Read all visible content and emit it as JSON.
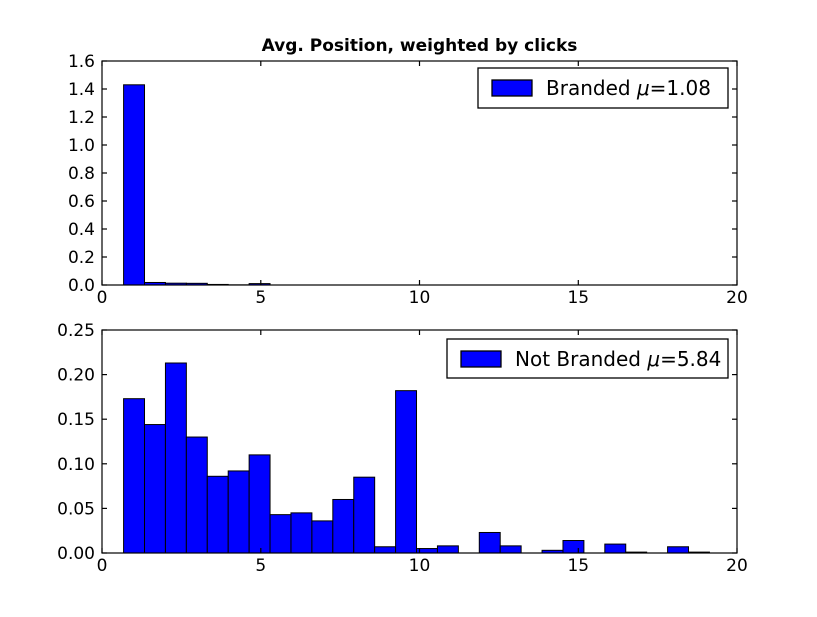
{
  "figure": {
    "title": "Avg. Position, weighted by clicks",
    "background_color": "#ffffff",
    "bar_fill_color": "#0000ff",
    "bar_edge_color": "#000000",
    "axis_color": "#000000",
    "mu_symbol": "μ"
  },
  "chart_data": [
    {
      "type": "bar",
      "subtype": "histogram",
      "legend": {
        "label": "Branded",
        "mu": "1.08",
        "position": "upper right"
      },
      "xlim": [
        0,
        20
      ],
      "ylim": [
        0,
        1.6
      ],
      "xticks": [
        0,
        5,
        10,
        15,
        20
      ],
      "xtick_labels": [
        "0",
        "5",
        "10",
        "15",
        "20"
      ],
      "yticks": [
        0.0,
        0.2,
        0.4,
        0.6,
        0.8,
        1.0,
        1.2,
        1.4,
        1.6
      ],
      "ytick_labels": [
        "0.0",
        "0.2",
        "0.4",
        "0.6",
        "0.8",
        "1.0",
        "1.2",
        "1.4",
        "1.6"
      ],
      "grid": false,
      "bin_start": 0.68,
      "bin_width": 0.659,
      "values": [
        1.43,
        0.018,
        0.013,
        0.012,
        0.004,
        0.001,
        0.01,
        0,
        0,
        0,
        0,
        0,
        0,
        0,
        0,
        0,
        0,
        0,
        0,
        0,
        0,
        0,
        0,
        0,
        0,
        0,
        0,
        0,
        0
      ]
    },
    {
      "type": "bar",
      "subtype": "histogram",
      "legend": {
        "label": "Not Branded",
        "mu": "5.84",
        "position": "upper right"
      },
      "xlim": [
        0,
        20
      ],
      "ylim": [
        0,
        0.25
      ],
      "xticks": [
        0,
        5,
        10,
        15,
        20
      ],
      "xtick_labels": [
        "0",
        "5",
        "10",
        "15",
        "20"
      ],
      "yticks": [
        0.0,
        0.05,
        0.1,
        0.15,
        0.2,
        0.25
      ],
      "ytick_labels": [
        "0.00",
        "0.05",
        "0.10",
        "0.15",
        "0.20",
        "0.25"
      ],
      "grid": false,
      "bin_start": 0.68,
      "bin_width": 0.659,
      "values": [
        0.173,
        0.144,
        0.213,
        0.13,
        0.086,
        0.092,
        0.11,
        0.043,
        0.045,
        0.036,
        0.06,
        0.085,
        0.007,
        0.182,
        0.005,
        0.008,
        0,
        0.023,
        0.008,
        0,
        0.003,
        0.014,
        0,
        0.01,
        0.001,
        0,
        0.007,
        0.001,
        0
      ]
    }
  ]
}
